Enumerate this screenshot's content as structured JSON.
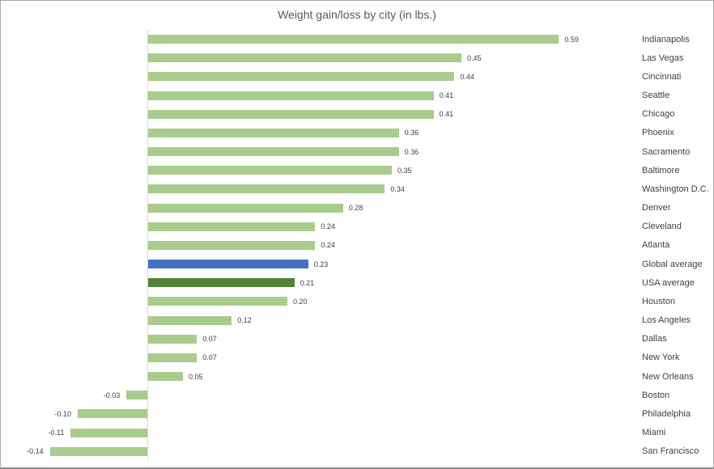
{
  "chart_data": {
    "type": "bar",
    "orientation": "horizontal",
    "title": "Weight gain/loss by city (in lbs.)",
    "xlabel": "",
    "ylabel": "",
    "xlim": [
      -0.2,
      0.65
    ],
    "grid": false,
    "legend": false,
    "category_label_position": "right",
    "value_labels": "outside-end",
    "rows": [
      {
        "city": "Indianapolis",
        "value": 0.59,
        "label": "0.59",
        "color": "default"
      },
      {
        "city": "Las Vegas",
        "value": 0.45,
        "label": "0.45",
        "color": "default"
      },
      {
        "city": "Cincinnati",
        "value": 0.44,
        "label": "0.44",
        "color": "default"
      },
      {
        "city": "Seattle",
        "value": 0.41,
        "label": "0.41",
        "color": "default"
      },
      {
        "city": "Chicago",
        "value": 0.41,
        "label": "0.41",
        "color": "default"
      },
      {
        "city": "Phoenix",
        "value": 0.36,
        "label": "0.36",
        "color": "default"
      },
      {
        "city": "Sacramento",
        "value": 0.36,
        "label": "0.36",
        "color": "default"
      },
      {
        "city": "Baltimore",
        "value": 0.35,
        "label": "0.35",
        "color": "default"
      },
      {
        "city": "Washington D.C.",
        "value": 0.34,
        "label": "0.34",
        "color": "default"
      },
      {
        "city": "Denver",
        "value": 0.28,
        "label": "0.28",
        "color": "default"
      },
      {
        "city": "Cleveland",
        "value": 0.24,
        "label": "0.24",
        "color": "default"
      },
      {
        "city": "Atlanta",
        "value": 0.24,
        "label": "0.24",
        "color": "default"
      },
      {
        "city": "Global average",
        "value": 0.23,
        "label": "0.23",
        "color": "global_average"
      },
      {
        "city": "USA average",
        "value": 0.21,
        "label": "0.21",
        "color": "usa_average"
      },
      {
        "city": "Houston",
        "value": 0.2,
        "label": "0.20",
        "color": "default"
      },
      {
        "city": "Los Angeles",
        "value": 0.12,
        "label": "0.12",
        "color": "default"
      },
      {
        "city": "Dallas",
        "value": 0.07,
        "label": "0.07",
        "color": "default"
      },
      {
        "city": "New York",
        "value": 0.07,
        "label": "0.07",
        "color": "default"
      },
      {
        "city": "New Orleans",
        "value": 0.05,
        "label": "0.05",
        "color": "default"
      },
      {
        "city": "Boston",
        "value": -0.03,
        "label": "-0.03",
        "color": "default"
      },
      {
        "city": "Philadelphia",
        "value": -0.1,
        "label": "-0.10",
        "color": "default"
      },
      {
        "city": "Miami",
        "value": -0.11,
        "label": "-0.11",
        "color": "default"
      },
      {
        "city": "San Francisco",
        "value": -0.14,
        "label": "-0.14",
        "color": "default"
      }
    ]
  },
  "colors": {
    "default": "#a9cb8d",
    "global_average": "#4472c4",
    "usa_average": "#548235",
    "axis_line": "#d9d9d9",
    "title_text": "#595959",
    "label_text": "#404040"
  }
}
